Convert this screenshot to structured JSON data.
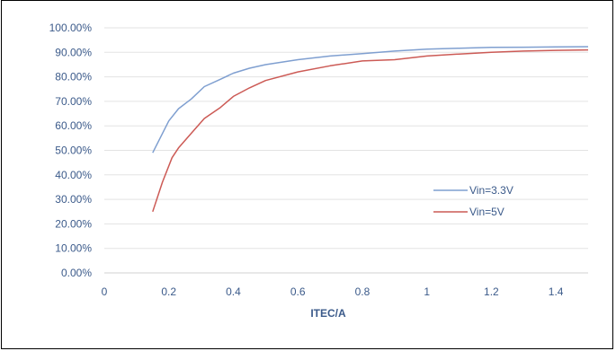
{
  "chart_data": {
    "type": "line",
    "title": "",
    "xlabel": "ITEC/A",
    "ylabel": "",
    "xlim": [
      0,
      1.5
    ],
    "ylim": [
      0,
      1.0
    ],
    "grid": "horizontal",
    "legend_position": "right-middle",
    "x_ticks": [
      "0",
      "0.2",
      "0.4",
      "0.6",
      "0.8",
      "1",
      "1.2",
      "1.4"
    ],
    "y_ticks": [
      "0.00%",
      "10.00%",
      "20.00%",
      "30.00%",
      "40.00%",
      "50.00%",
      "60.00%",
      "70.00%",
      "80.00%",
      "90.00%",
      "100.00%"
    ],
    "series": [
      {
        "name": "Vin=3.3V",
        "color": "#7f9fd0",
        "x": [
          0.15,
          0.2,
          0.23,
          0.27,
          0.31,
          0.36,
          0.4,
          0.45,
          0.5,
          0.6,
          0.7,
          0.8,
          0.9,
          1.0,
          1.1,
          1.2,
          1.3,
          1.4,
          1.5
        ],
        "y": [
          0.49,
          0.62,
          0.67,
          0.71,
          0.76,
          0.79,
          0.815,
          0.835,
          0.85,
          0.87,
          0.885,
          0.895,
          0.905,
          0.913,
          0.917,
          0.92,
          0.921,
          0.922,
          0.923
        ]
      },
      {
        "name": "Vin=5V",
        "color": "#cc5a55",
        "x": [
          0.15,
          0.18,
          0.21,
          0.23,
          0.27,
          0.31,
          0.36,
          0.4,
          0.45,
          0.5,
          0.6,
          0.7,
          0.8,
          0.9,
          1.0,
          1.1,
          1.2,
          1.3,
          1.4,
          1.5
        ],
        "y": [
          0.25,
          0.37,
          0.47,
          0.51,
          0.57,
          0.63,
          0.675,
          0.72,
          0.755,
          0.785,
          0.82,
          0.845,
          0.865,
          0.87,
          0.885,
          0.893,
          0.9,
          0.905,
          0.908,
          0.91
        ]
      }
    ]
  }
}
